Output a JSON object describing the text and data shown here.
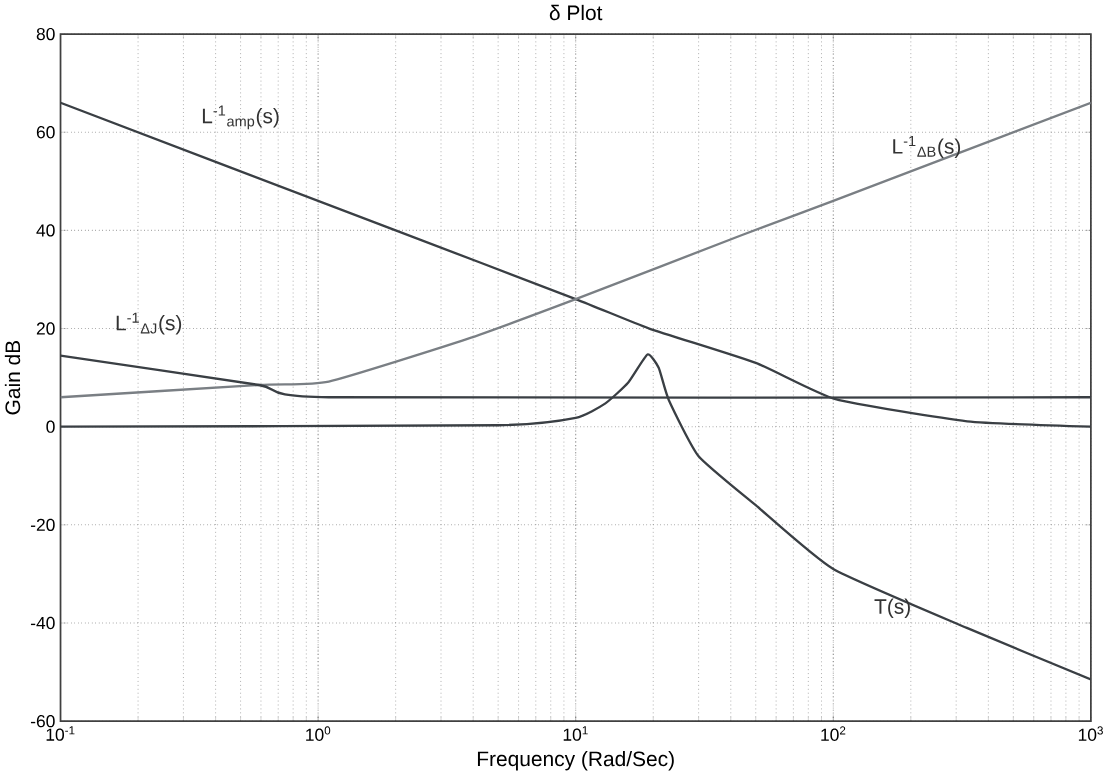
{
  "chart_data": {
    "type": "line",
    "title": "δ Plot",
    "xlabel": "Frequency (Rad/Sec)",
    "ylabel": "Gain  dB",
    "log": "x",
    "grid": true,
    "xlim": [
      0.1,
      1000
    ],
    "ylim": [
      -60,
      80
    ],
    "xticks": [
      {
        "value": 0.1,
        "label": "10$^{-1}$"
      },
      {
        "value": 1,
        "label": "10$^{0}$"
      },
      {
        "value": 10,
        "label": "10$^{1}$"
      },
      {
        "value": 100,
        "label": "10$^{2}$"
      },
      {
        "value": 1000,
        "label": "10$^{3}$"
      }
    ],
    "yticks": [
      -60,
      -40,
      -20,
      0,
      20,
      40,
      60,
      80
    ],
    "series": [
      {
        "name": "L$^{-1}$$_{amp}$(s)",
        "color": "#3a3f44",
        "x": [
          0.1,
          2,
          10,
          19.3,
          50,
          102,
          331,
          1000
        ],
        "values": [
          66,
          40,
          26,
          20,
          13,
          5.6,
          1.1,
          0
        ]
      },
      {
        "name": "L$^{-1}$$_{ΔB}$(s)",
        "color": "#7a7f84",
        "x": [
          0.1,
          0.59,
          1.1,
          3.8,
          10,
          44,
          100,
          1000
        ],
        "values": [
          6,
          8.5,
          9.2,
          17.9,
          26,
          39,
          46,
          66
        ]
      },
      {
        "name": "L$^{-1}$$_{ΔJ}$(s)",
        "color": "#3a3f44",
        "x": [
          0.1,
          0.59,
          1.1,
          1000
        ],
        "values": [
          14.5,
          8.5,
          6,
          6
        ]
      },
      {
        "name": "T(s)",
        "color": "#3a3f44",
        "x": [
          0.1,
          5,
          10,
          13,
          16,
          19,
          21,
          23,
          30,
          50,
          100,
          330,
          1000
        ],
        "values": [
          0,
          0.3,
          1.8,
          4.7,
          9,
          14.7,
          12,
          5.4,
          -6,
          -16,
          -29,
          -41,
          -51.5
        ]
      }
    ]
  }
}
